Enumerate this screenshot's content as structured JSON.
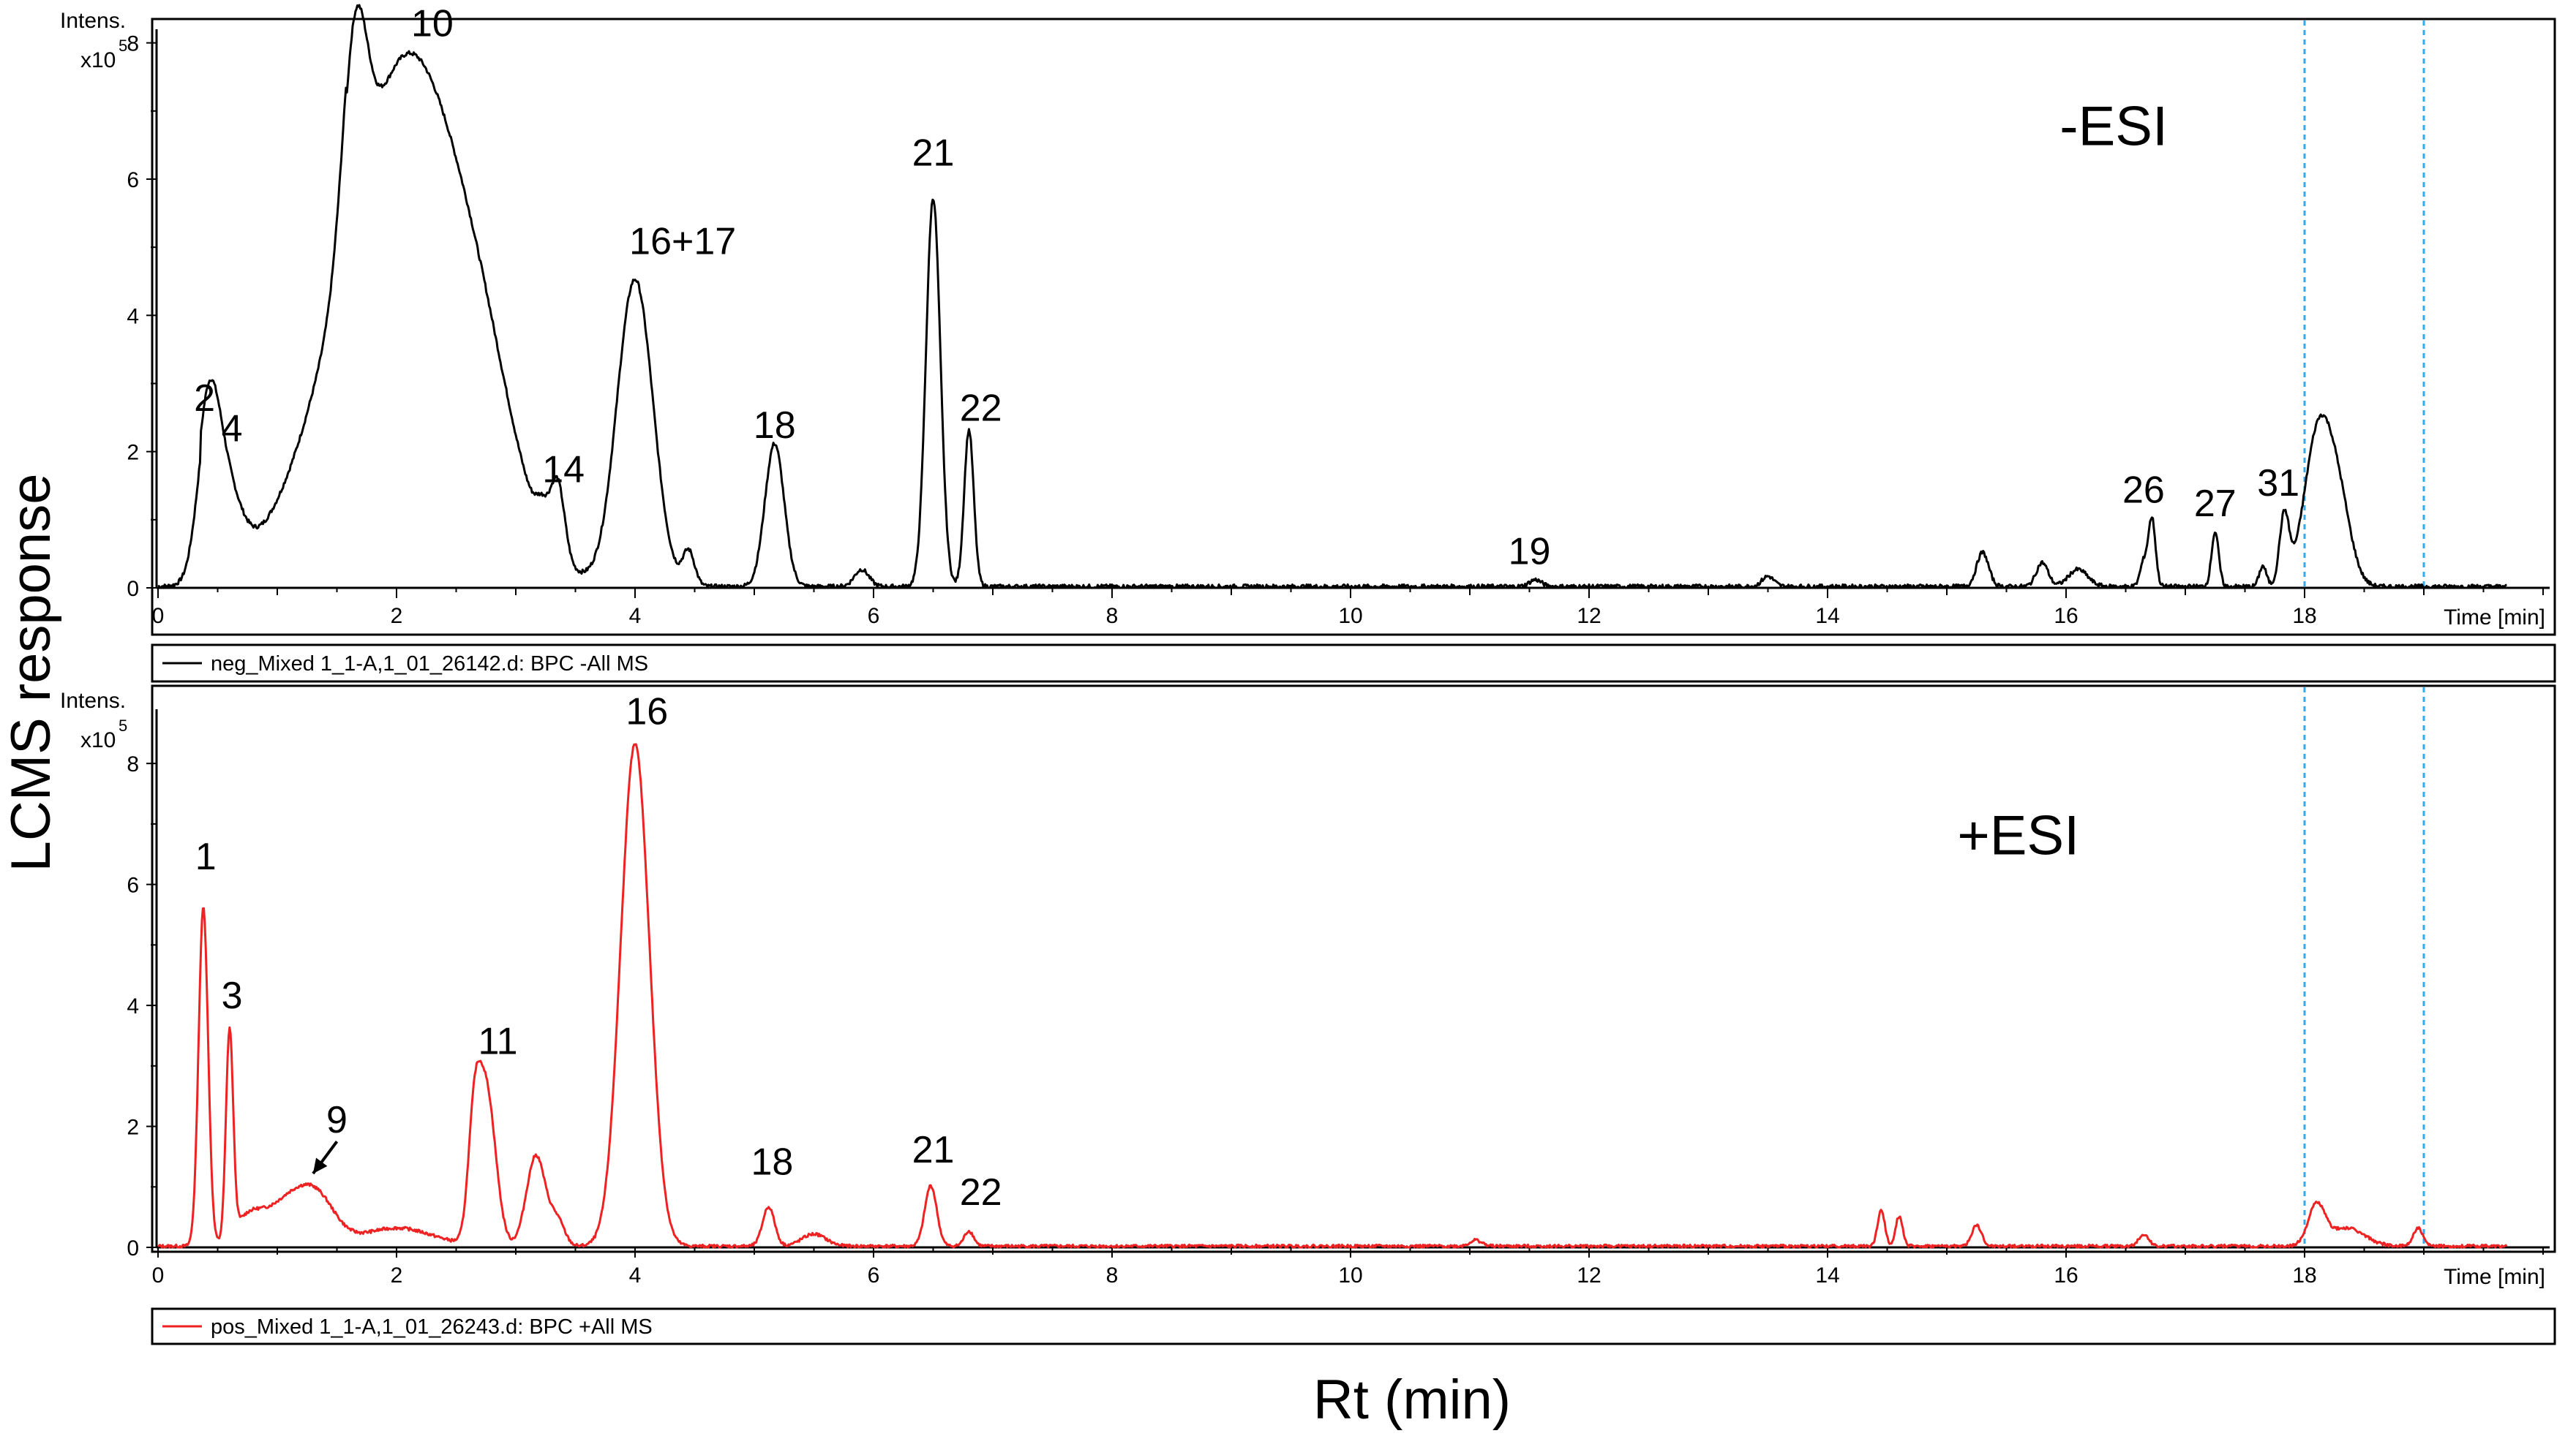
{
  "figure": {
    "ylabel": "LCMS response",
    "xlabel": "Rt (min)"
  },
  "chart_data": [
    {
      "type": "line",
      "mode": "-ESI",
      "intens_label": "Intens.",
      "scale_label": "x10",
      "scale_exp": "5",
      "time_label": "Time [min]",
      "legend": "neg_Mixed 1_1-A,1_01_26142.d: BPC -All MS",
      "color": "#000000",
      "xlim": [
        0,
        20
      ],
      "ylim": [
        0,
        8.2
      ],
      "xticks": [
        0,
        2,
        4,
        6,
        8,
        10,
        12,
        14,
        16,
        18
      ],
      "yticks": [
        0,
        2,
        4,
        6,
        8
      ],
      "marker_lines_x": [
        18.0,
        19.0
      ],
      "marker_color": "#33aaee",
      "baseline": 0.02,
      "noise": 0.03,
      "segments": [
        {
          "from": 0.0,
          "to": 0.34,
          "level": 0.0
        },
        {
          "from": 0.36,
          "to": 1.58,
          "level": 0.3
        },
        {
          "from": 1.58,
          "to": 20.0,
          "level": 0.0
        }
      ],
      "peaks": [
        {
          "rt": 0.42,
          "h": 1.9,
          "w": 0.09
        },
        {
          "rt": 0.55,
          "h": 1.2,
          "w": 0.13
        },
        {
          "rt": 1.2,
          "h": 0.2,
          "w": 0.25
        },
        {
          "rt": 1.65,
          "h": 3.0,
          "w": 0.1
        },
        {
          "rt": 2.1,
          "h": 7.8,
          "w": 0.52
        },
        {
          "rt": 2.75,
          "h": 0.8,
          "w": 0.25
        },
        {
          "rt": 3.22,
          "h": 0.35,
          "w": 0.05
        },
        {
          "rt": 3.35,
          "h": 1.1,
          "w": 0.06
        },
        {
          "rt": 4.0,
          "h": 4.5,
          "w": 0.15
        },
        {
          "rt": 4.45,
          "h": 0.5,
          "w": 0.05
        },
        {
          "rt": 5.17,
          "h": 2.1,
          "w": 0.08
        },
        {
          "rt": 5.9,
          "h": 0.25,
          "w": 0.06
        },
        {
          "rt": 6.5,
          "h": 5.7,
          "w": 0.06
        },
        {
          "rt": 6.8,
          "h": 2.3,
          "w": 0.04
        },
        {
          "rt": 11.55,
          "h": 0.1,
          "w": 0.05
        },
        {
          "rt": 13.5,
          "h": 0.15,
          "w": 0.05
        },
        {
          "rt": 15.3,
          "h": 0.5,
          "w": 0.05
        },
        {
          "rt": 15.8,
          "h": 0.35,
          "w": 0.05
        },
        {
          "rt": 16.1,
          "h": 0.25,
          "w": 0.08
        },
        {
          "rt": 16.65,
          "h": 0.35,
          "w": 0.03
        },
        {
          "rt": 16.72,
          "h": 1.0,
          "w": 0.03
        },
        {
          "rt": 17.25,
          "h": 0.8,
          "w": 0.03
        },
        {
          "rt": 17.65,
          "h": 0.3,
          "w": 0.03
        },
        {
          "rt": 17.83,
          "h": 1.0,
          "w": 0.04
        },
        {
          "rt": 18.12,
          "h": 2.3,
          "w": 0.12
        },
        {
          "rt": 18.3,
          "h": 0.9,
          "w": 0.1
        }
      ],
      "annotations": [
        {
          "text": "2",
          "x": 0.39,
          "y": 2.6
        },
        {
          "text": "4",
          "x": 0.62,
          "y": 2.15
        },
        {
          "text": "10",
          "x": 2.3,
          "y": 8.1
        },
        {
          "text": "14",
          "x": 3.4,
          "y": 1.55
        },
        {
          "text": "16+17",
          "x": 4.4,
          "y": 4.9
        },
        {
          "text": "18",
          "x": 5.17,
          "y": 2.2
        },
        {
          "text": "21",
          "x": 6.5,
          "y": 6.2
        },
        {
          "text": "22",
          "x": 6.9,
          "y": 2.45
        },
        {
          "text": "19",
          "x": 11.5,
          "y": 0.35
        },
        {
          "text": "26",
          "x": 16.65,
          "y": 1.25
        },
        {
          "text": "27",
          "x": 17.25,
          "y": 1.05
        },
        {
          "text": "31",
          "x": 17.78,
          "y": 1.35
        },
        {
          "text": "-ESI",
          "x": 16.4,
          "y": 6.5,
          "big": true
        }
      ]
    },
    {
      "type": "line",
      "mode": "+ESI",
      "intens_label": "Intens.",
      "scale_label": "x10",
      "scale_exp": "5",
      "time_label": "Time [min]",
      "legend": "pos_Mixed 1_1-A,1_01_26243.d: BPC +All MS",
      "color": "#ee2222",
      "xlim": [
        0,
        20
      ],
      "ylim": [
        0,
        8.8
      ],
      "xticks": [
        0,
        2,
        4,
        6,
        8,
        10,
        12,
        14,
        16,
        18
      ],
      "yticks": [
        0,
        2,
        4,
        6,
        8
      ],
      "marker_lines_x": [
        18.0,
        19.0
      ],
      "marker_color": "#33aaee",
      "baseline": 0.02,
      "noise": 0.025,
      "segments": [
        {
          "from": 0.0,
          "to": 20.0,
          "level": 0.0
        }
      ],
      "peaks": [
        {
          "rt": 0.38,
          "h": 5.6,
          "w": 0.04
        },
        {
          "rt": 0.6,
          "h": 3.4,
          "w": 0.03
        },
        {
          "rt": 0.75,
          "h": 0.4,
          "w": 0.12
        },
        {
          "rt": 1.1,
          "h": 0.75,
          "w": 0.2
        },
        {
          "rt": 1.35,
          "h": 0.55,
          "w": 0.15
        },
        {
          "rt": 2.0,
          "h": 0.3,
          "w": 0.3
        },
        {
          "rt": 2.65,
          "h": 1.5,
          "w": 0.05
        },
        {
          "rt": 2.75,
          "h": 2.6,
          "w": 0.08
        },
        {
          "rt": 3.17,
          "h": 1.5,
          "w": 0.08
        },
        {
          "rt": 3.35,
          "h": 0.4,
          "w": 0.06
        },
        {
          "rt": 4.0,
          "h": 8.3,
          "w": 0.12
        },
        {
          "rt": 5.12,
          "h": 0.65,
          "w": 0.05
        },
        {
          "rt": 5.5,
          "h": 0.2,
          "w": 0.1
        },
        {
          "rt": 6.48,
          "h": 1.0,
          "w": 0.05
        },
        {
          "rt": 6.8,
          "h": 0.25,
          "w": 0.04
        },
        {
          "rt": 11.05,
          "h": 0.1,
          "w": 0.05
        },
        {
          "rt": 14.45,
          "h": 0.6,
          "w": 0.03
        },
        {
          "rt": 14.6,
          "h": 0.5,
          "w": 0.03
        },
        {
          "rt": 15.25,
          "h": 0.35,
          "w": 0.04
        },
        {
          "rt": 16.65,
          "h": 0.2,
          "w": 0.04
        },
        {
          "rt": 18.1,
          "h": 0.65,
          "w": 0.07
        },
        {
          "rt": 18.35,
          "h": 0.3,
          "w": 0.15
        },
        {
          "rt": 18.95,
          "h": 0.3,
          "w": 0.04
        }
      ],
      "annotations": [
        {
          "text": "1",
          "x": 0.4,
          "y": 6.25
        },
        {
          "text": "3",
          "x": 0.62,
          "y": 3.95
        },
        {
          "text": "9",
          "x": 1.5,
          "y": 1.9
        },
        {
          "text": "11",
          "x": 2.85,
          "y": 3.2
        },
        {
          "text": "16",
          "x": 4.1,
          "y": 8.65
        },
        {
          "text": "18",
          "x": 5.15,
          "y": 1.2
        },
        {
          "text": "21",
          "x": 6.5,
          "y": 1.4
        },
        {
          "text": "22",
          "x": 6.9,
          "y": 0.7
        },
        {
          "text": "+ESI",
          "x": 15.6,
          "y": 6.5,
          "big": true
        }
      ],
      "arrow": {
        "from": [
          1.5,
          1.75
        ],
        "to": [
          1.3,
          1.22
        ]
      }
    }
  ]
}
